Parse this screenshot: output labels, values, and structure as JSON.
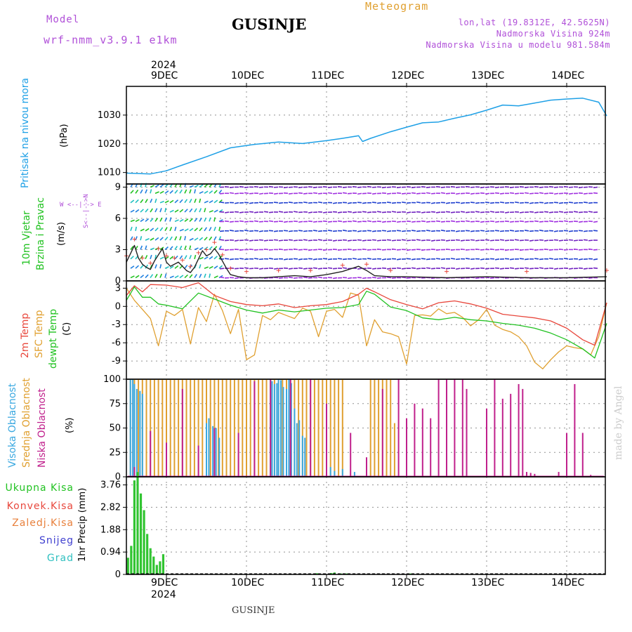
{
  "header": {
    "model_label": "Model",
    "model_name": "wrf-nmm_v3.9.1 e1km",
    "title": "GUSINJE",
    "meteogram": "Meteogram",
    "lonlat": "lon,lat (19.8312E, 42.5625N)",
    "altitude": "Nadmorska Visina 924m",
    "model_altitude": "Nadmorska Visina u modelu 981.584m",
    "year_top": "2024",
    "year_bottom": "2024",
    "footer": "GUSINJE",
    "watermark": "made by Angel"
  },
  "colors": {
    "pressure": "#1ea0e6",
    "wind": "#21c221",
    "wind_speed": "#3d7a1a",
    "t2m": "#e8473c",
    "sfc": "#e0a030",
    "dewpt": "#21c221",
    "high": "#3aa8e0",
    "mid": "#e0a030",
    "low": "#c0208c",
    "precip": "#31c431",
    "conv": "#e8473c",
    "frz": "#e8803c",
    "snow": "#4040d0",
    "hail": "#30c0c0",
    "violet": "#b050d8",
    "grid": "#909090"
  },
  "date_labels": [
    "9DEC",
    "10DEC",
    "11DEC",
    "12DEC",
    "13DEC",
    "14DEC"
  ],
  "panel_labels": {
    "pressure": {
      "name": "Pritisak na nivou mora",
      "unit": "(hPa)"
    },
    "wind": {
      "name1": "10m Vjetar",
      "name2": "Brzina i Pravac",
      "unit": "(m/s)",
      "compass": "W <--|--> E",
      "compass2": "S<--|-->N"
    },
    "temp": {
      "t2m": "2m Temp",
      "sfc": "SFC Temp",
      "dew": "dewpt Temp",
      "unit": "(C)"
    },
    "cloud": {
      "high": "Visoka Oblacnost",
      "mid": "Srednja Oblacnost",
      "low": "Niska Oblacnost",
      "unit": "(%)"
    },
    "precip": {
      "unit": "1hr Precip (mm)",
      "total": "Ukupna Kisa",
      "conv": "Konvek.Kisa",
      "frz": "Zaledj.Kisa",
      "snow": "Snijeg",
      "hail": "Grad"
    }
  },
  "chart_data": [
    {
      "type": "line",
      "name": "pressure",
      "x_unit": "days since 8 Dec 2024 00:00",
      "ylim": [
        1006,
        1040
      ],
      "yticks": [
        1010,
        1020,
        1030
      ],
      "x": [
        0.5,
        0.8,
        1.0,
        1.2,
        1.5,
        1.8,
        2.1,
        2.4,
        2.7,
        3.0,
        3.2,
        3.4,
        3.45,
        3.55,
        3.8,
        4.0,
        4.2,
        4.4,
        4.6,
        4.8,
        5.0,
        5.2,
        5.4,
        5.6,
        5.8,
        6.0,
        6.2,
        6.4,
        6.5
      ],
      "y": [
        1009.8,
        1009.5,
        1010.6,
        1012.6,
        1015.5,
        1018.6,
        1019.8,
        1020.6,
        1020.1,
        1021.1,
        1021.9,
        1022.8,
        1020.8,
        1021.9,
        1024.2,
        1025.8,
        1027.3,
        1027.6,
        1028.9,
        1030.1,
        1031.7,
        1033.5,
        1033.2,
        1034.2,
        1035.2,
        1035.6,
        1035.9,
        1034.5,
        1029.7
      ]
    },
    {
      "type": "line",
      "name": "10m wind speed",
      "ylim": [
        0,
        9.3
      ],
      "yticks": [
        0,
        3,
        6,
        9
      ],
      "x": [
        0.5,
        0.55,
        0.6,
        0.65,
        0.7,
        0.75,
        0.8,
        0.85,
        0.9,
        0.95,
        1.0,
        1.05,
        1.1,
        1.15,
        1.2,
        1.25,
        1.3,
        1.35,
        1.4,
        1.45,
        1.5,
        1.55,
        1.6,
        1.65,
        1.7,
        1.75,
        1.8,
        1.9,
        2.0,
        2.2,
        2.4,
        2.6,
        2.8,
        3.0,
        3.2,
        3.4,
        3.5,
        3.6,
        3.8,
        4.0,
        4.5,
        5.0,
        5.5,
        6.0,
        6.5
      ],
      "y": [
        1.8,
        2.6,
        3.4,
        2.2,
        1.6,
        1.3,
        1.1,
        1.9,
        2.5,
        3.1,
        1.8,
        1.4,
        1.6,
        1.8,
        1.4,
        1.0,
        0.8,
        1.3,
        2.1,
        2.9,
        2.4,
        2.6,
        3.1,
        2.6,
        1.9,
        1.2,
        0.6,
        0.4,
        0.3,
        0.3,
        0.4,
        0.5,
        0.4,
        0.6,
        0.9,
        1.4,
        1.0,
        0.5,
        0.4,
        0.4,
        0.3,
        0.4,
        0.3,
        0.3,
        0.4
      ]
    },
    {
      "type": "line",
      "name": "temperature",
      "ylim": [
        -12,
        4.2
      ],
      "yticks": [
        -9,
        -6,
        -3,
        0,
        3
      ],
      "series": [
        {
          "name": "2m Temp",
          "x": [
            0.5,
            0.6,
            0.7,
            0.8,
            1.0,
            1.2,
            1.4,
            1.6,
            1.8,
            2.0,
            2.2,
            2.4,
            2.6,
            2.8,
            3.0,
            3.2,
            3.4,
            3.5,
            3.6,
            3.8,
            4.0,
            4.2,
            4.4,
            4.6,
            4.8,
            5.0,
            5.2,
            5.4,
            5.6,
            5.8,
            6.0,
            6.2,
            6.35,
            6.5
          ],
          "y": [
            1.8,
            3.4,
            2.4,
            3.6,
            3.5,
            3.1,
            3.9,
            1.8,
            0.8,
            0.3,
            0.1,
            0.4,
            -0.2,
            0.1,
            0.3,
            0.8,
            2.0,
            3.0,
            2.4,
            1.1,
            0.3,
            -0.4,
            0.6,
            0.9,
            0.4,
            -0.3,
            -1.3,
            -1.6,
            -1.9,
            -2.4,
            -3.6,
            -5.5,
            -6.4,
            0.6
          ]
        },
        {
          "name": "SFC Temp",
          "x": [
            0.5,
            0.6,
            0.7,
            0.8,
            0.9,
            1.0,
            1.1,
            1.2,
            1.3,
            1.4,
            1.5,
            1.6,
            1.7,
            1.8,
            1.9,
            2.0,
            2.1,
            2.2,
            2.3,
            2.4,
            2.5,
            2.6,
            2.7,
            2.8,
            2.9,
            3.0,
            3.1,
            3.2,
            3.3,
            3.4,
            3.5,
            3.6,
            3.7,
            3.8,
            3.9,
            4.0,
            4.1,
            4.2,
            4.3,
            4.4,
            4.5,
            4.6,
            4.7,
            4.8,
            4.9,
            5.0,
            5.1,
            5.2,
            5.3,
            5.4,
            5.5,
            5.6,
            5.7,
            5.8,
            5.9,
            6.0,
            6.1,
            6.2,
            6.3,
            6.4,
            6.5
          ],
          "y": [
            3.0,
            1.0,
            -0.5,
            -2.0,
            -6.5,
            -0.8,
            -1.5,
            -0.5,
            -6.2,
            -0.2,
            -2.5,
            2.0,
            -0.7,
            -4.5,
            -0.5,
            -8.8,
            -8.0,
            -1.5,
            -2.2,
            -1.0,
            -1.5,
            -2.0,
            -0.3,
            -0.8,
            -5.0,
            -0.8,
            -0.5,
            -1.8,
            2.2,
            1.8,
            -6.5,
            -2.2,
            -4.2,
            -4.5,
            -5.0,
            -9.5,
            -1.5,
            -1.4,
            -1.6,
            -0.4,
            -1.2,
            -1.0,
            -1.8,
            -3.2,
            -2.2,
            -0.5,
            -3.1,
            -3.8,
            -4.2,
            -5.0,
            -6.5,
            -9.2,
            -10.3,
            -8.8,
            -7.5,
            -6.5,
            -6.8,
            -7.0,
            -8.0,
            -5.0,
            0.6
          ]
        },
        {
          "name": "dewpt Temp",
          "x": [
            0.5,
            0.6,
            0.7,
            0.8,
            0.9,
            1.0,
            1.2,
            1.4,
            1.6,
            1.8,
            2.0,
            2.2,
            2.4,
            2.6,
            2.8,
            3.0,
            3.2,
            3.4,
            3.5,
            3.6,
            3.8,
            4.0,
            4.2,
            4.4,
            4.6,
            4.8,
            5.0,
            5.2,
            5.4,
            5.6,
            5.8,
            6.0,
            6.2,
            6.35,
            6.5
          ],
          "y": [
            1.0,
            3.2,
            1.5,
            1.5,
            0.4,
            0.2,
            -0.4,
            2.2,
            1.2,
            0.2,
            -0.6,
            -1.1,
            -0.6,
            -0.9,
            -0.6,
            -0.3,
            -0.2,
            0.3,
            2.5,
            2.0,
            -0.1,
            -0.7,
            -1.9,
            -2.2,
            -1.8,
            -2.2,
            -2.4,
            -2.8,
            -3.1,
            -3.6,
            -4.4,
            -5.5,
            -7.0,
            -8.5,
            -2.8
          ]
        }
      ]
    },
    {
      "type": "bar",
      "name": "cloud cover",
      "ylim": [
        0,
        100
      ],
      "yticks": [
        0,
        25,
        50,
        75,
        100
      ],
      "series": [
        {
          "name": "Visoka Oblacnost",
          "x": [
            0.55,
            0.58,
            0.6,
            0.63,
            0.67,
            0.7,
            1.5,
            1.53,
            1.58,
            1.62,
            1.66,
            2.3,
            2.32,
            2.35,
            2.38,
            2.4,
            2.43,
            2.46,
            2.5,
            2.53,
            2.56,
            2.6,
            2.63,
            2.66,
            2.7,
            2.73,
            3.05,
            3.1,
            3.2,
            3.35
          ],
          "y": [
            100,
            100,
            95,
            90,
            88,
            85,
            55,
            60,
            52,
            50,
            40,
            100,
            98,
            95,
            96,
            100,
            99,
            92,
            90,
            100,
            96,
            70,
            55,
            58,
            42,
            40,
            10,
            6,
            8,
            5
          ]
        },
        {
          "name": "Srednja Oblacnost",
          "x": [
            0.55,
            0.6,
            0.65,
            0.7,
            0.75,
            0.8,
            0.85,
            0.9,
            0.95,
            1.0,
            1.05,
            1.1,
            1.15,
            1.2,
            1.25,
            1.3,
            1.35,
            1.4,
            1.45,
            1.5,
            1.55,
            1.6,
            1.65,
            1.7,
            1.75,
            1.8,
            1.85,
            1.9,
            1.95,
            2.0,
            2.05,
            2.1,
            2.15,
            2.2,
            2.25,
            2.3,
            2.35,
            2.4,
            2.45,
            2.5,
            2.55,
            2.6,
            2.65,
            2.7,
            2.75,
            2.8,
            2.85,
            2.9,
            2.95,
            3.0,
            3.05,
            3.1,
            3.15,
            3.2,
            3.55,
            3.6,
            3.65,
            3.7,
            3.75,
            3.8,
            3.85
          ],
          "y": [
            100,
            100,
            100,
            100,
            100,
            100,
            100,
            100,
            100,
            100,
            100,
            100,
            100,
            100,
            100,
            100,
            100,
            100,
            100,
            100,
            100,
            100,
            100,
            100,
            100,
            100,
            100,
            100,
            100,
            100,
            100,
            100,
            100,
            100,
            100,
            100,
            100,
            100,
            100,
            100,
            100,
            100,
            100,
            100,
            100,
            100,
            100,
            100,
            100,
            100,
            100,
            100,
            100,
            100,
            100,
            100,
            100,
            100,
            100,
            100,
            55
          ]
        },
        {
          "name": "Niska Oblacnost",
          "x": [
            0.6,
            0.8,
            1.0,
            1.2,
            1.4,
            1.6,
            1.9,
            2.1,
            2.3,
            2.55,
            2.8,
            3.0,
            3.3,
            3.5,
            3.7,
            3.9,
            4.0,
            4.1,
            4.2,
            4.3,
            4.4,
            4.5,
            4.6,
            4.7,
            4.75,
            5.0,
            5.1,
            5.2,
            5.3,
            5.4,
            5.45,
            5.5,
            5.55,
            5.6,
            5.9,
            6.0,
            6.1,
            6.2,
            6.3
          ],
          "y": [
            10,
            47,
            35,
            90,
            32,
            50,
            45,
            98,
            100,
            100,
            100,
            75,
            45,
            20,
            90,
            100,
            60,
            75,
            70,
            60,
            100,
            100,
            100,
            100,
            90,
            70,
            100,
            80,
            85,
            95,
            90,
            5,
            4,
            3,
            5,
            45,
            95,
            45,
            2
          ]
        }
      ]
    },
    {
      "type": "bar",
      "name": "1hr precipitation",
      "ylim": [
        0,
        4.1
      ],
      "yticks": [
        0,
        0.94,
        1.88,
        2.82,
        3.76
      ],
      "series": [
        {
          "name": "Ukupna Kisa",
          "x": [
            0.52,
            0.56,
            0.6,
            0.64,
            0.68,
            0.72,
            0.76,
            0.8,
            0.84,
            0.88,
            0.92,
            0.96,
            2.88,
            3.06,
            3.1,
            3.18,
            3.25,
            4.05
          ],
          "y": [
            0.7,
            1.2,
            3.95,
            4.3,
            3.4,
            2.7,
            1.7,
            1.1,
            0.75,
            0.4,
            0.55,
            0.85,
            0.05,
            0.06,
            0.08,
            0.04,
            0.04,
            0.04
          ]
        }
      ]
    }
  ]
}
